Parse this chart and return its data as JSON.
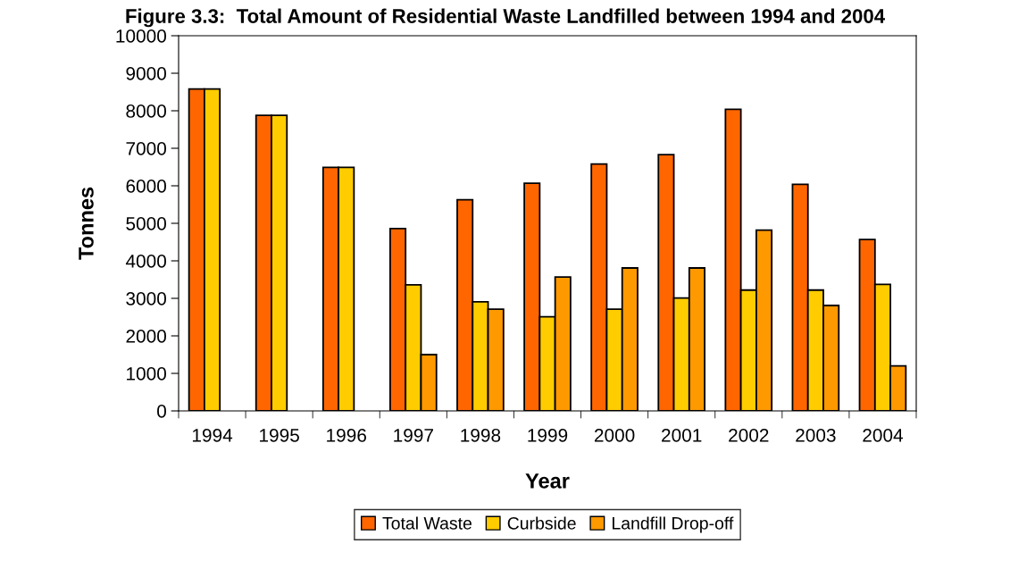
{
  "chart_data": {
    "type": "bar",
    "title": "Figure 3.3:  Total Amount of Residential Waste Landfilled between 1994 and 2004",
    "xlabel": "Year",
    "ylabel": "Tonnes",
    "categories": [
      "1994",
      "1995",
      "1996",
      "1997",
      "1998",
      "1999",
      "2000",
      "2001",
      "2002",
      "2003",
      "2004"
    ],
    "series": [
      {
        "name": "Total Waste",
        "color": "#ff6600",
        "values": [
          8580,
          7880,
          6490,
          4860,
          5630,
          6070,
          6580,
          6830,
          8040,
          6040,
          4570
        ]
      },
      {
        "name": "Curbside",
        "color": "#ffcc00",
        "values": [
          8580,
          7880,
          6490,
          3360,
          2910,
          2510,
          2710,
          3010,
          3220,
          3220,
          3370
        ]
      },
      {
        "name": "Landfill Drop-off",
        "color": "#ff9900",
        "values": [
          null,
          null,
          null,
          1500,
          2710,
          3570,
          3810,
          3810,
          4820,
          2810,
          1200
        ]
      }
    ],
    "ylim": [
      0,
      10000
    ],
    "yticks": [
      0,
      1000,
      2000,
      3000,
      4000,
      5000,
      6000,
      7000,
      8000,
      9000,
      10000
    ],
    "grid": false,
    "legend": "bottom"
  }
}
